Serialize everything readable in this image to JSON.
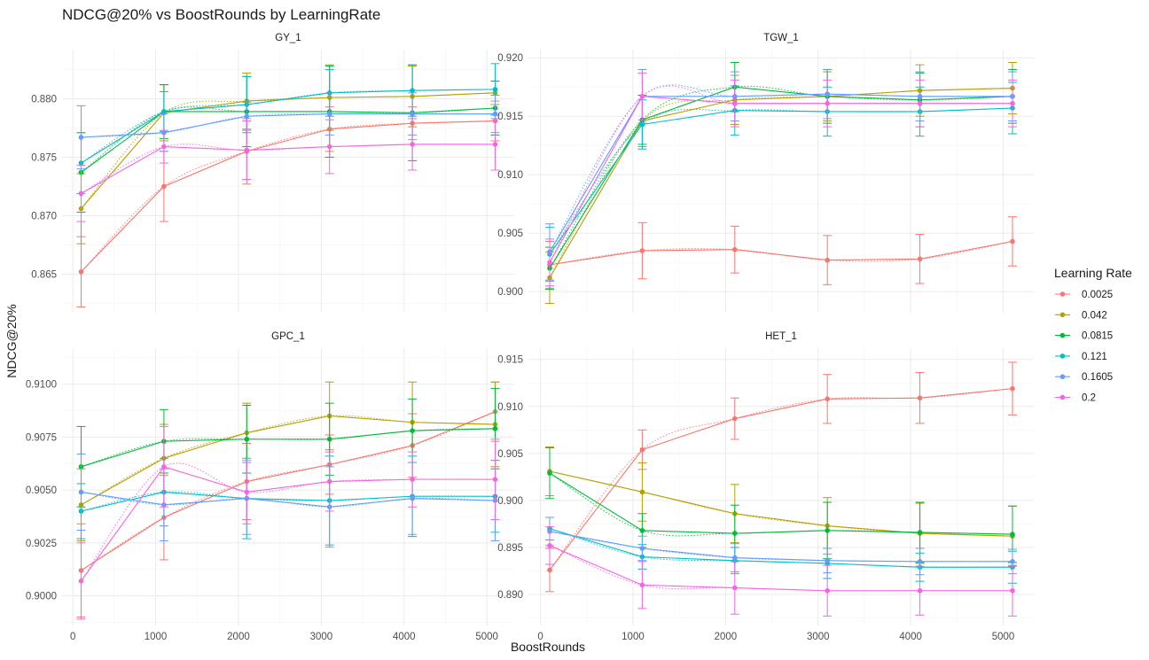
{
  "chart_data": {
    "type": "line",
    "title": "NDCG@20% vs BoostRounds by LearningRate",
    "xlabel": "BoostRounds",
    "ylabel": "NDCG@20%",
    "x": [
      100,
      1100,
      2100,
      3100,
      4100,
      5100
    ],
    "x_ticks": [
      0,
      1000,
      2000,
      3000,
      4000,
      5000
    ],
    "xlim": [
      -130,
      5330
    ],
    "legend": {
      "title": "Learning Rate",
      "position": "right"
    },
    "grid": true,
    "series_names": [
      "0.0025",
      "0.042",
      "0.0815",
      "0.121",
      "0.1605",
      "0.2"
    ],
    "series_colors": [
      "#F8766D",
      "#B79F00",
      "#00BA38",
      "#00BFC4",
      "#619CFF",
      "#F564E3"
    ],
    "panels": [
      {
        "title": "GY_1",
        "ylim": [
          0.8617,
          0.8842
        ],
        "y_ticks": [
          0.865,
          0.87,
          0.875,
          0.88
        ],
        "y_tick_labels": [
          "0.865",
          "0.870",
          "0.875",
          "0.880"
        ],
        "series": [
          {
            "name": "0.0025",
            "values": [
              0.8652,
              0.8725,
              0.8755,
              0.8774,
              0.8779,
              0.8781
            ],
            "err": [
              0.003,
              0.003,
              0.0028,
              0.0019,
              0.0014,
              0.0017
            ]
          },
          {
            "name": "0.042",
            "values": [
              0.8706,
              0.8788,
              0.8798,
              0.8801,
              0.8802,
              0.8805
            ],
            "err": [
              0.003,
              0.0024,
              0.0024,
              0.0028,
              0.0026,
              0.001
            ]
          },
          {
            "name": "0.0815",
            "values": [
              0.8737,
              0.8789,
              0.8789,
              0.8789,
              0.8788,
              0.8792
            ],
            "err": [
              0.0034,
              0.0023,
              0.003,
              0.0039,
              0.0041,
              0.0023
            ]
          },
          {
            "name": "0.121",
            "values": [
              0.8745,
              0.8789,
              0.8795,
              0.8805,
              0.8807,
              0.8808
            ],
            "err": [
              0.0026,
              0.0017,
              0.0024,
              0.002,
              0.0022,
              0.0022
            ]
          },
          {
            "name": "0.1605",
            "values": [
              0.8767,
              0.8771,
              0.8785,
              0.8787,
              0.8787,
              0.8787
            ],
            "err": [
              0.0027,
              0.0016,
              0.0012,
              0.0018,
              0.0018,
              0.0016
            ]
          },
          {
            "name": "0.2",
            "values": [
              0.8719,
              0.8759,
              0.8756,
              0.8759,
              0.8761,
              0.8761
            ],
            "err": [
              0.0024,
              0.0014,
              0.0025,
              0.0023,
              0.0022,
              0.0022
            ]
          }
        ]
      },
      {
        "title": "TGW_1",
        "ylim": [
          0.8982,
          0.9207
        ],
        "y_ticks": [
          0.9,
          0.905,
          0.91,
          0.915,
          0.92
        ],
        "y_tick_labels": [
          "0.900",
          "0.905",
          "0.910",
          "0.915",
          "0.920"
        ],
        "series": [
          {
            "name": "0.0025",
            "values": [
              0.9023,
              0.9035,
              0.9036,
              0.9027,
              0.9028,
              0.9043
            ],
            "err": [
              0.002,
              0.0024,
              0.002,
              0.0021,
              0.0021,
              0.0021
            ]
          },
          {
            "name": "0.042",
            "values": [
              0.9012,
              0.9146,
              0.9164,
              0.9167,
              0.9172,
              0.9174
            ],
            "err": [
              0.0022,
              0.0022,
              0.0021,
              0.0021,
              0.0022,
              0.0022
            ]
          },
          {
            "name": "0.0815",
            "values": [
              0.902,
              0.9147,
              0.9175,
              0.9167,
              0.9164,
              0.9167
            ],
            "err": [
              0.0018,
              0.0021,
              0.0021,
              0.0023,
              0.0023,
              0.0023
            ]
          },
          {
            "name": "0.121",
            "values": [
              0.9032,
              0.9143,
              0.9155,
              0.9154,
              0.9154,
              0.9157
            ],
            "err": [
              0.0023,
              0.0021,
              0.0021,
              0.0021,
              0.0021,
              0.0022
            ]
          },
          {
            "name": "0.1605",
            "values": [
              0.9034,
              0.9167,
              0.9167,
              0.9169,
              0.9167,
              0.9167
            ],
            "err": [
              0.0024,
              0.0023,
              0.0021,
              0.0021,
              0.0021,
              0.0021
            ]
          },
          {
            "name": "0.2",
            "values": [
              0.9025,
              0.9167,
              0.9161,
              0.9161,
              0.9161,
              0.9161
            ],
            "err": [
              0.002,
              0.002,
              0.002,
              0.002,
              0.002,
              0.002
            ]
          }
        ]
      },
      {
        "title": "GPC_1",
        "ylim": [
          0.8986,
          0.9117
        ],
        "y_ticks": [
          0.9,
          0.9025,
          0.905,
          0.9075,
          0.91
        ],
        "y_tick_labels": [
          "0.9000",
          "0.9025",
          "0.9050",
          "0.9075",
          "0.9100"
        ],
        "series": [
          {
            "name": "0.0025",
            "values": [
              0.9012,
              0.9037,
              0.9054,
              0.9062,
              0.9071,
              0.9087
            ],
            "err": [
              0.0022,
              0.002,
              0.0018,
              0.0014,
              0.0015,
              0.0014
            ]
          },
          {
            "name": "0.042",
            "values": [
              0.9043,
              0.9065,
              0.9077,
              0.9085,
              0.9082,
              0.9081
            ],
            "err": [
              0.0017,
              0.0016,
              0.0014,
              0.0016,
              0.0019,
              0.002
            ]
          },
          {
            "name": "0.0815",
            "values": [
              0.9061,
              0.9073,
              0.9074,
              0.9074,
              0.9078,
              0.9079
            ],
            "err": [
              0.0019,
              0.0015,
              0.0016,
              0.0017,
              0.0015,
              0.0019
            ]
          },
          {
            "name": "0.121",
            "values": [
              0.904,
              0.9049,
              0.9046,
              0.9045,
              0.9047,
              0.9047
            ],
            "err": [
              0.0013,
              0.0016,
              0.0019,
              0.0021,
              0.0019,
              0.0017
            ]
          },
          {
            "name": "0.1605",
            "values": [
              0.9049,
              0.9043,
              0.9046,
              0.9042,
              0.9046,
              0.9045
            ],
            "err": [
              0.0018,
              0.0017,
              0.0017,
              0.0019,
              0.0017,
              0.0019
            ]
          },
          {
            "name": "0.2",
            "values": [
              0.9007,
              0.9061,
              0.9049,
              0.9054,
              0.9055,
              0.9055
            ],
            "err": [
              0.0018,
              0.0019,
              0.0015,
              0.0014,
              0.0013,
              0.0019
            ]
          }
        ]
      },
      {
        "title": "HET_1",
        "ylim": [
          0.8867,
          0.9162
        ],
        "y_ticks": [
          0.89,
          0.895,
          0.9,
          0.905,
          0.91,
          0.915
        ],
        "y_tick_labels": [
          "0.890",
          "0.895",
          "0.900",
          "0.905",
          "0.910",
          "0.915"
        ],
        "series": [
          {
            "name": "0.0025",
            "values": [
              0.8926,
              0.9054,
              0.9087,
              0.9108,
              0.9109,
              0.9119
            ],
            "err": [
              0.0023,
              0.0021,
              0.0022,
              0.0026,
              0.0027,
              0.0028
            ]
          },
          {
            "name": "0.042",
            "values": [
              0.9031,
              0.9009,
              0.8986,
              0.8973,
              0.8965,
              0.8962
            ],
            "err": [
              0.0026,
              0.0031,
              0.0031,
              0.003,
              0.0032,
              0.0032
            ]
          },
          {
            "name": "0.0815",
            "values": [
              0.9029,
              0.8968,
              0.8965,
              0.8968,
              0.8966,
              0.8964
            ],
            "err": [
              0.0027,
              0.0018,
              0.003,
              0.003,
              0.0032,
              0.003
            ]
          },
          {
            "name": "0.121",
            "values": [
              0.897,
              0.894,
              0.8936,
              0.8933,
              0.8929,
              0.8929
            ],
            "err": [
              0.0012,
              0.0013,
              0.0014,
              0.0016,
              0.0015,
              0.0017
            ]
          },
          {
            "name": "0.1605",
            "values": [
              0.8967,
              0.8949,
              0.8939,
              0.8936,
              0.8935,
              0.8935
            ],
            "err": [
              0.0015,
              0.0013,
              0.0015,
              0.0013,
              0.0014,
              0.0013
            ]
          },
          {
            "name": "0.2",
            "values": [
              0.8952,
              0.891,
              0.8907,
              0.8904,
              0.8904,
              0.8904
            ],
            "err": [
              0.002,
              0.0025,
              0.0028,
              0.0027,
              0.0026,
              0.0027
            ]
          }
        ]
      }
    ]
  }
}
